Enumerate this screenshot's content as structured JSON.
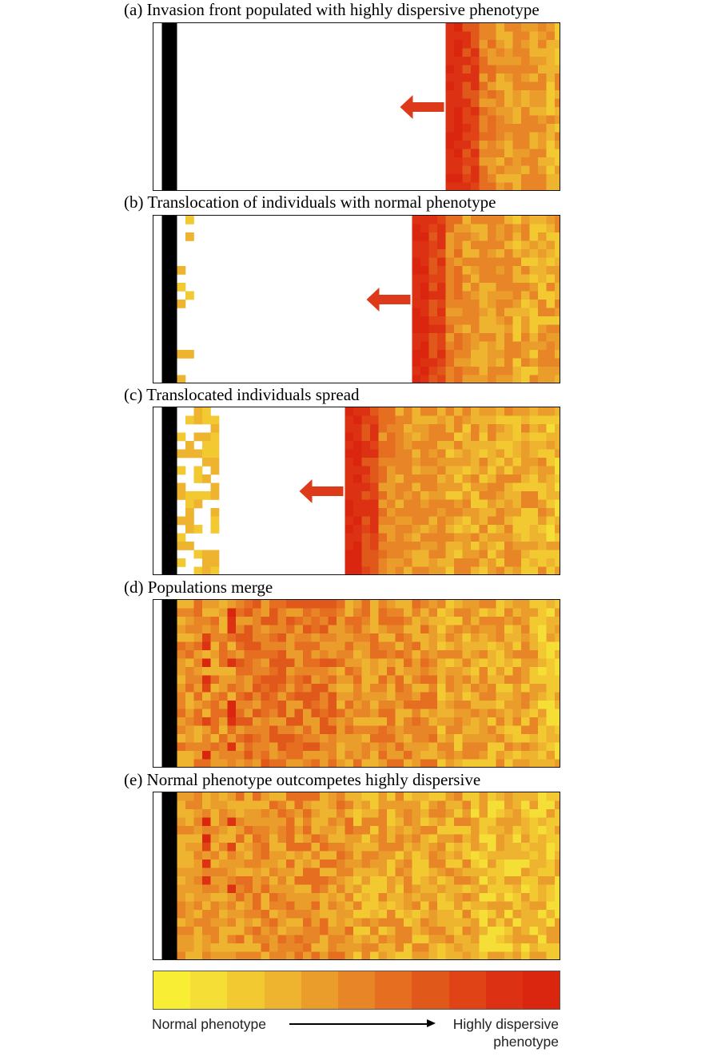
{
  "panels": [
    {
      "id": "a",
      "title": "(a) Invasion front populated with highly dispersive phenotype",
      "front_col": 32,
      "translocated_cols": 0,
      "merged": false,
      "late": false
    },
    {
      "id": "b",
      "title": "(b) Translocation of individuals with normal phenotype",
      "front_col": 28,
      "translocated_cols": 1,
      "merged": false,
      "late": false
    },
    {
      "id": "c",
      "title": "(c) Translocated individuals spread",
      "front_col": 20,
      "translocated_cols": 4,
      "merged": false,
      "late": false
    },
    {
      "id": "d",
      "title": "(d) Populations merge",
      "front_col": 3,
      "translocated_cols": 0,
      "merged": true,
      "late": false
    },
    {
      "id": "e",
      "title": "(e) Normal phenotype outcompetes highly dispersive",
      "front_col": 3,
      "translocated_cols": 0,
      "merged": true,
      "late": true
    }
  ],
  "legend": {
    "colors": [
      "#f8ee33",
      "#f5de35",
      "#f2c931",
      "#efb42f",
      "#eb9d2b",
      "#e88526",
      "#e56e20",
      "#e1581b",
      "#df4316",
      "#dc3112",
      "#da250f"
    ],
    "left_label": "Normal phenotype",
    "right_label_line1": "Highly dispersive",
    "right_label_line2": "phenotype"
  },
  "colors": {
    "arrow": "#dc3a1a",
    "barrier": "#000000",
    "frame": "#111111"
  }
}
